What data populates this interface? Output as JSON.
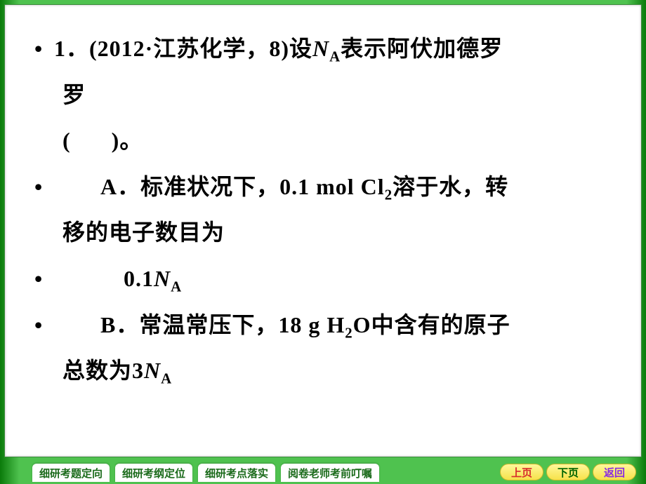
{
  "slide": {
    "background_gradient": [
      "#0a7a0a",
      "#4fc24f"
    ],
    "content_bg": "#ffffff",
    "text_color": "#000000",
    "font_size_pt": 24,
    "lines": {
      "l1a": "1．(2012·江苏化学，8)设",
      "l1b": "表示阿伏加德罗",
      "na_var": "N",
      "na_sub": "A",
      "l2": "罗",
      "l3a": "(",
      "l3b": ")。",
      "l4a": "A．标准状况下，0.1 mol Cl",
      "cl_sub": "2",
      "l4b": "溶于水，转",
      "l5": "移的电子数目为",
      "l6a": "0.1",
      "l7a": "B．常温常压下，18 g H",
      "h_sub": "2",
      "l7b": "O中含有的原子",
      "l8a": "总数为3"
    }
  },
  "tabs": {
    "t1": "细研考题定向",
    "t2": "细研考纲定位",
    "t3": "细研考点落实",
    "t4": "阅卷老师考前叮嘱"
  },
  "nav": {
    "up": "上页",
    "down": "下页",
    "back": "返回",
    "up_color": "#d82c2c",
    "down_color": "#006400",
    "back_color": "#8a2be2",
    "btn_bg": [
      "#fff89a",
      "#f6e24a"
    ]
  }
}
